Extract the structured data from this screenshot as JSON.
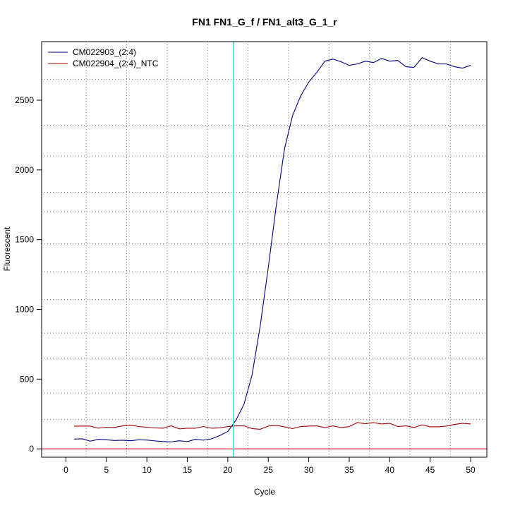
{
  "chart_data": {
    "type": "line",
    "title": "FN1  FN1_G_f / FN1_alt3_G_1_r",
    "xlabel": "Cycle",
    "ylabel": "Fluorescent",
    "xlim": [
      -3,
      52
    ],
    "ylim": [
      -60,
      2920
    ],
    "x_ticks": [
      0,
      5,
      10,
      15,
      20,
      25,
      30,
      35,
      40,
      45,
      50
    ],
    "y_ticks": [
      0,
      500,
      1000,
      1500,
      2000,
      2500
    ],
    "x_grid": [
      2.5,
      7.5,
      12.5,
      17.5,
      22.5,
      27.5,
      32.5,
      37.5,
      42.5,
      47.5
    ],
    "y_grid": [
      210,
      400,
      650,
      830,
      1070,
      1270,
      1470,
      1700,
      1840,
      2100,
      2320,
      2650
    ],
    "threshold_cycle": 20.7,
    "threshold_color": "#40e0e0",
    "baseline_color": "#d00000",
    "legend_position": "top-left",
    "x": [
      1,
      2,
      3,
      4,
      5,
      6,
      7,
      8,
      9,
      10,
      11,
      12,
      13,
      14,
      15,
      16,
      17,
      18,
      19,
      20,
      21,
      22,
      23,
      24,
      25,
      26,
      27,
      28,
      29,
      30,
      31,
      32,
      33,
      34,
      35,
      36,
      37,
      38,
      39,
      40,
      41,
      42,
      43,
      44,
      45,
      46,
      47,
      48,
      49,
      50
    ],
    "series": [
      {
        "name": "CM022903_(2:4)",
        "color": "#000080",
        "values": [
          70,
          72,
          55,
          68,
          65,
          60,
          62,
          58,
          65,
          63,
          57,
          52,
          50,
          58,
          52,
          68,
          62,
          72,
          95,
          125,
          205,
          320,
          530,
          880,
          1300,
          1750,
          2150,
          2390,
          2530,
          2630,
          2700,
          2780,
          2795,
          2775,
          2750,
          2760,
          2780,
          2770,
          2800,
          2780,
          2785,
          2740,
          2735,
          2805,
          2780,
          2760,
          2760,
          2740,
          2730,
          2750
        ]
      },
      {
        "name": "CM022904_(2:4)_NTC",
        "color": "#a00000",
        "values": [
          163,
          163,
          163,
          148,
          155,
          153,
          165,
          170,
          160,
          155,
          150,
          148,
          165,
          143,
          148,
          148,
          160,
          148,
          150,
          160,
          165,
          165,
          145,
          140,
          163,
          168,
          158,
          145,
          160,
          163,
          165,
          152,
          165,
          152,
          160,
          188,
          180,
          188,
          178,
          183,
          160,
          165,
          153,
          172,
          158,
          158,
          163,
          175,
          183,
          178
        ]
      }
    ]
  }
}
